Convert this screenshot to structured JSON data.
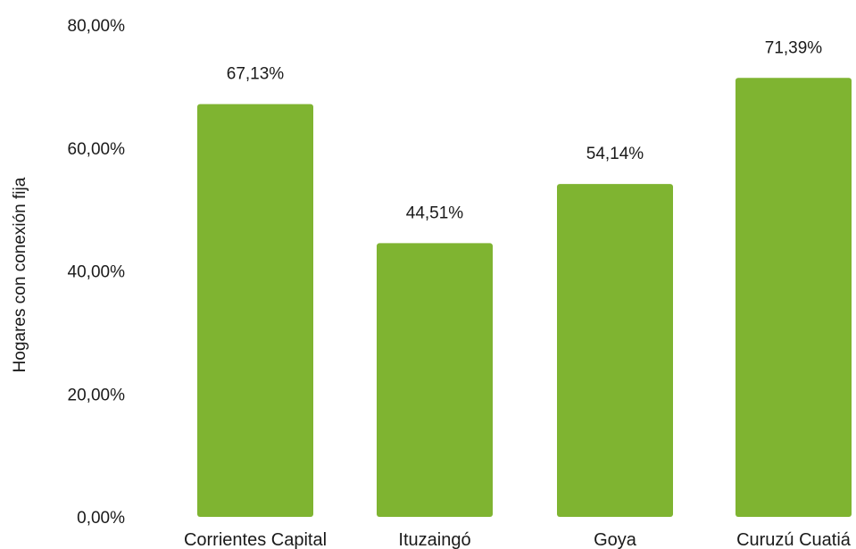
{
  "chart_data": {
    "type": "bar",
    "ylabel": "Hogares con conexión fija",
    "xlabel": "",
    "ylim": [
      0,
      80
    ],
    "yticks": [
      {
        "value": 0,
        "label": "0,00%"
      },
      {
        "value": 20,
        "label": "20,00%"
      },
      {
        "value": 40,
        "label": "40,00%"
      },
      {
        "value": 60,
        "label": "60,00%"
      },
      {
        "value": 80,
        "label": "80,00%"
      }
    ],
    "categories": [
      "Corrientes Capital",
      "Ituzaingó",
      "Goya",
      "Curuzú Cuatiá"
    ],
    "values": [
      67.13,
      44.51,
      54.14,
      71.39
    ],
    "data_labels": [
      "67,13%",
      "44,51%",
      "54,14%",
      "71,39%"
    ],
    "bar_color": "#7fb431",
    "grid": false,
    "legend": "none"
  }
}
